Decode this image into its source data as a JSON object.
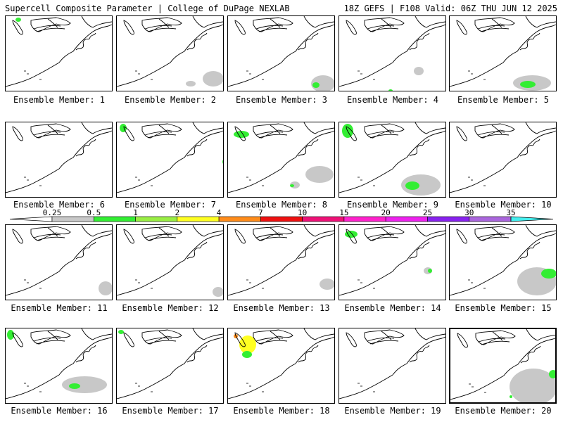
{
  "header": {
    "title_left": "Supercell Composite Parameter | College of DuPage NEXLAB",
    "title_right": "18Z GEFS | F108 Valid: 06Z THU JUN 12 2025"
  },
  "members": [
    {
      "label": "Ensemble Member: 1",
      "selected": false
    },
    {
      "label": "Ensemble Member: 2",
      "selected": false
    },
    {
      "label": "Ensemble Member: 3",
      "selected": false
    },
    {
      "label": "Ensemble Member: 4",
      "selected": false
    },
    {
      "label": "Ensemble Member: 5",
      "selected": false
    },
    {
      "label": "Ensemble Member: 6",
      "selected": false
    },
    {
      "label": "Ensemble Member: 7",
      "selected": false
    },
    {
      "label": "Ensemble Member: 8",
      "selected": false
    },
    {
      "label": "Ensemble Member: 9",
      "selected": false
    },
    {
      "label": "Ensemble Member: 10",
      "selected": false
    },
    {
      "label": "Ensemble Member: 11",
      "selected": false
    },
    {
      "label": "Ensemble Member: 12",
      "selected": false
    },
    {
      "label": "Ensemble Member: 13",
      "selected": false
    },
    {
      "label": "Ensemble Member: 14",
      "selected": false
    },
    {
      "label": "Ensemble Member: 15",
      "selected": false
    },
    {
      "label": "Ensemble Member: 16",
      "selected": false
    },
    {
      "label": "Ensemble Member: 17",
      "selected": false
    },
    {
      "label": "Ensemble Member: 18",
      "selected": false
    },
    {
      "label": "Ensemble Member: 19",
      "selected": false
    },
    {
      "label": "Ensemble Member: 20",
      "selected": true
    }
  ],
  "legend": {
    "thresholds": [
      "0.25",
      "0.5",
      "1",
      "2",
      "4",
      "7",
      "10",
      "15",
      "20",
      "25",
      "30",
      "35"
    ],
    "colors": [
      "#c8c8c8",
      "#33ee33",
      "#99ee44",
      "#ffff22",
      "#ff8c1a",
      "#ee1111",
      "#ee1177",
      "#ff22cc",
      "#ee22ee",
      "#8822ee",
      "#aa66dd",
      "#44eeee"
    ]
  }
}
